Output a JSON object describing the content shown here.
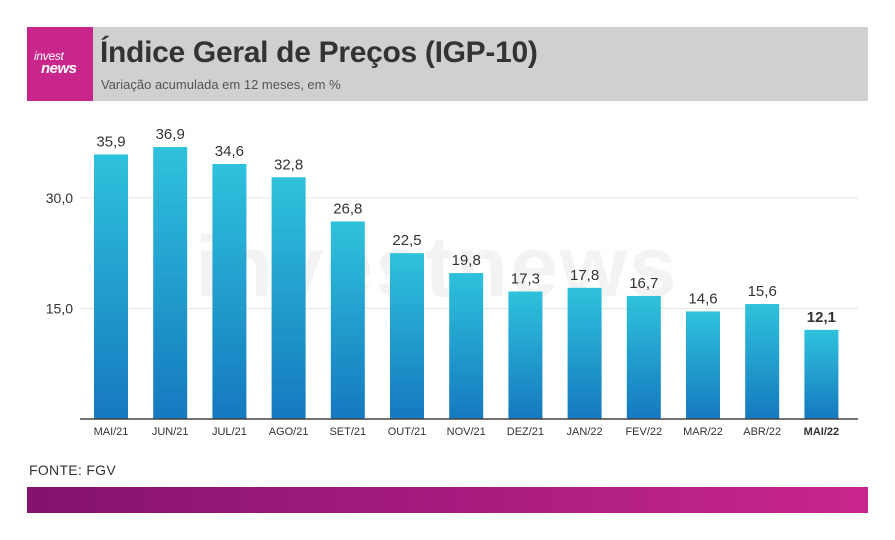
{
  "header": {
    "logo_line1": "invest",
    "logo_line2": "news",
    "title": "Índice Geral de Preços (IGP-10)",
    "subtitle": "Variação acumulada em 12 meses, em %"
  },
  "watermark": "investnews",
  "source": "FONTE: FGV",
  "colors": {
    "logo_bg": "#c9268c",
    "header_bg": "#d0d0d0",
    "bar_top": "#2fc2dc",
    "bar_bottom": "#1579bf",
    "footer_start": "#83126f",
    "footer_end": "#c9268c"
  },
  "chart_data": {
    "type": "bar",
    "title": "Índice Geral de Preços (IGP-10)",
    "subtitle": "Variação acumulada em 12 meses, em %",
    "xlabel": "",
    "ylabel": "",
    "categories": [
      "MAI/21",
      "JUN/21",
      "JUL/21",
      "AGO/21",
      "SET/21",
      "OUT/21",
      "NOV/21",
      "DEZ/21",
      "JAN/22",
      "FEV/22",
      "MAR/22",
      "ABR/22",
      "MAI/22"
    ],
    "values": [
      35.9,
      36.9,
      34.6,
      32.8,
      26.8,
      22.5,
      19.8,
      17.3,
      17.8,
      16.7,
      14.6,
      15.6,
      12.1
    ],
    "value_labels": [
      "35,9",
      "36,9",
      "34,6",
      "32,8",
      "26,8",
      "22,5",
      "19,8",
      "17,3",
      "17,8",
      "16,7",
      "14,6",
      "15,6",
      "12,1"
    ],
    "yticks": [
      15,
      30
    ],
    "ytick_labels": [
      "15,0",
      "30,0"
    ],
    "ylim": [
      0,
      40
    ],
    "grid": true,
    "highlight_category": "MAI/22"
  }
}
